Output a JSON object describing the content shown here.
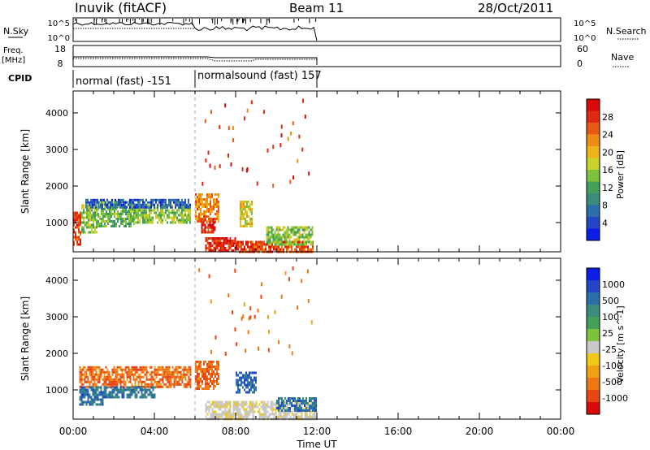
{
  "header": {
    "station": "Inuvik (fitACF)",
    "beam": "Beam 11",
    "date": "28/Oct/2011"
  },
  "panels": {
    "nsky_label": "N.Sky",
    "nsearch_label": "N.Search",
    "nsky_ticks": [
      "10^5",
      "10^0"
    ],
    "nsearch_ticks": [
      "10^5",
      "10^0"
    ],
    "freq_label": "Freq.",
    "freq_unit": "[MHz]",
    "freq_ticks": [
      "18",
      "8"
    ],
    "nave_label": "Nave",
    "nave_ticks": [
      "60",
      "0"
    ],
    "cpid_label": "CPID",
    "cpid_segments": [
      {
        "label": "normal (fast) -151",
        "start_hour": 0,
        "end_hour": 6
      },
      {
        "label": "normalsound (fast) 157",
        "start_hour": 6,
        "end_hour": 12
      }
    ]
  },
  "colors": {
    "power": [
      "#0a1ee6",
      "#2346c8",
      "#2c6eaa",
      "#3a8c7c",
      "#43a05a",
      "#7cc23a",
      "#c8d22a",
      "#f0b418",
      "#f08c14",
      "#e85a14",
      "#e02a10",
      "#d80a0a"
    ],
    "velocity": [
      "#0a1ee6",
      "#2346c8",
      "#2c6eaa",
      "#3a8c7c",
      "#43a05a",
      "#7cc23a",
      "#c8c8c8",
      "#f0c818",
      "#f0a014",
      "#f07814",
      "#e84614",
      "#d80a0a"
    ],
    "ground_scatter": "#c8c8c8"
  },
  "chart_data": [
    {
      "type": "heatmap",
      "name": "power",
      "ylabel": "Slant Range [km]",
      "yticks": [
        1000,
        2000,
        3000,
        4000
      ],
      "ylim": [
        200,
        4600
      ],
      "xlim": [
        0,
        24
      ],
      "colorbar_label": "Power [dB]",
      "colorbar_ticks": [
        4,
        8,
        12,
        16,
        20,
        24,
        28
      ],
      "colorbar_range": [
        0,
        30
      ],
      "regions": [
        {
          "x": [
            0.0,
            0.4
          ],
          "y": [
            400,
            1300
          ],
          "value": 26
        },
        {
          "x": [
            0.4,
            1.2
          ],
          "y": [
            700,
            1500
          ],
          "value": 14
        },
        {
          "x": [
            1.2,
            3.0
          ],
          "y": [
            900,
            1600
          ],
          "value": 12
        },
        {
          "x": [
            3.0,
            5.8
          ],
          "y": [
            1000,
            1500
          ],
          "value": 14
        },
        {
          "x": [
            0.6,
            5.8
          ],
          "y": [
            1400,
            1650
          ],
          "value": 4
        },
        {
          "x": [
            6.0,
            7.2
          ],
          "y": [
            1000,
            1800
          ],
          "value": 22
        },
        {
          "x": [
            6.3,
            7.0
          ],
          "y": [
            700,
            1100
          ],
          "value": 28
        },
        {
          "x": [
            6.5,
            8.0
          ],
          "y": [
            200,
            600
          ],
          "value": 28
        },
        {
          "x": [
            8.0,
            11.8
          ],
          "y": [
            200,
            500
          ],
          "value": 26
        },
        {
          "x": [
            8.2,
            8.8
          ],
          "y": [
            900,
            1600
          ],
          "value": 18
        },
        {
          "x": [
            9.5,
            11.8
          ],
          "y": [
            400,
            900
          ],
          "value": 14
        }
      ]
    },
    {
      "type": "heatmap",
      "name": "velocity",
      "xlabel": "Time UT",
      "ylabel": "Slant Range [km]",
      "yticks": [
        1000,
        2000,
        3000,
        4000
      ],
      "ylim": [
        200,
        4600
      ],
      "xlim": [
        0,
        24
      ],
      "xticks": [
        "00:00",
        "04:00",
        "08:00",
        "12:00",
        "16:00",
        "20:00",
        "00:00"
      ],
      "colorbar_label": "Velocity [m s^-1]",
      "colorbar_ticks": [
        "1000",
        "500",
        "100",
        "25",
        "-25",
        "-100",
        "-500",
        "-1000"
      ],
      "regions": [
        {
          "x": [
            0.3,
            5.8
          ],
          "y": [
            1100,
            1650
          ],
          "value": -150
        },
        {
          "x": [
            0.3,
            1.5
          ],
          "y": [
            600,
            1100
          ],
          "value": 80
        },
        {
          "x": [
            1.5,
            4.0
          ],
          "y": [
            800,
            1100
          ],
          "value": 60
        },
        {
          "x": [
            6.0,
            7.2
          ],
          "y": [
            1000,
            1800
          ],
          "value": -200
        },
        {
          "x": [
            6.5,
            12.0
          ],
          "y": [
            200,
            700
          ],
          "value": 0
        },
        {
          "x": [
            8.0,
            9.0
          ],
          "y": [
            900,
            1500
          ],
          "value": 120
        },
        {
          "x": [
            10.0,
            12.0
          ],
          "y": [
            400,
            800
          ],
          "value": 80
        }
      ]
    }
  ]
}
